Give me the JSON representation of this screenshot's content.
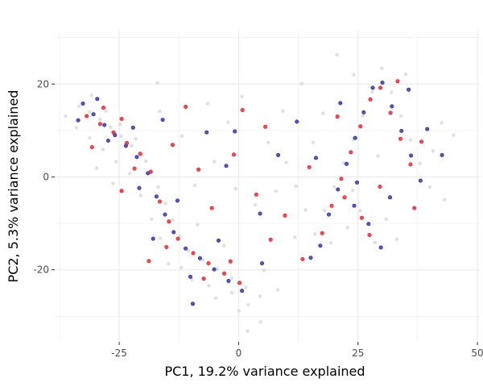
{
  "chart_data": {
    "type": "scatter",
    "xlabel": "PC1, 19.2% variance explained",
    "ylabel": "PC2, 5.3% variance explained",
    "xlim": [
      -38.5,
      50.5
    ],
    "ylim": [
      -35.5,
      31.5
    ],
    "x_ticks": [
      -25,
      0,
      25,
      50
    ],
    "x_tick_labels": [
      "-25",
      "0",
      "25",
      "50"
    ],
    "y_ticks": [
      -20,
      0,
      20
    ],
    "y_tick_labels": [
      "-20",
      "0",
      "20"
    ],
    "grid": true,
    "legend": "none",
    "colors": {
      "background_cells": "#c8c8c8",
      "group_blue": "#1f1f9e",
      "group_red": "#e8111f",
      "gridline": "#ebebeb"
    },
    "series": [
      {
        "color": "#c8c8c8",
        "points": [
          [
            -33.4,
            15.2
          ],
          [
            -31.2,
            14.0
          ],
          [
            -29.0,
            12.4
          ],
          [
            -26.8,
            10.7
          ],
          [
            -24.6,
            8.8
          ],
          [
            -22.4,
            6.7
          ],
          [
            -20.2,
            4.6
          ],
          [
            -18.3,
            1.3
          ],
          [
            -16.8,
            -2.2
          ],
          [
            -15.3,
            -5.7
          ],
          [
            -13.8,
            -9.3
          ],
          [
            -12.3,
            -12.8
          ],
          [
            -10.5,
            -15.9
          ],
          [
            -7.5,
            -17.9
          ],
          [
            -4.5,
            -19.8
          ],
          [
            -1.5,
            -21.8
          ],
          [
            1.5,
            -23.8
          ],
          [
            4.5,
            -25.7
          ],
          [
            -30.8,
            17.6
          ],
          [
            -27.8,
            14.2
          ],
          [
            -24.8,
            11.3
          ],
          [
            -21.5,
            8.2
          ],
          [
            -19.4,
            3.4
          ],
          [
            -20.5,
            -4.0
          ],
          [
            -16.4,
            -13.2
          ],
          [
            -12.0,
            -19.5
          ],
          [
            -6.2,
            -23.4
          ],
          [
            2.0,
            -27.5
          ],
          [
            -8.6,
            -10.3
          ],
          [
            -3.1,
            -14.8
          ],
          [
            -1.4,
            -24.9
          ],
          [
            5.3,
            -20.1
          ],
          [
            3.5,
            -6.0
          ],
          [
            -5.1,
            3.3
          ],
          [
            -11.9,
            8.8
          ],
          [
            -2.2,
            11.8
          ],
          [
            6.2,
            7.4
          ],
          [
            7.8,
            -3.1
          ],
          [
            -9.2,
            -1.8
          ],
          [
            -16.5,
            14.1
          ],
          [
            -0.6,
            -2.5
          ],
          [
            10.0,
            3.1
          ],
          [
            12.0,
            -2.0
          ],
          [
            14.0,
            -7.1
          ],
          [
            16.0,
            -12.3
          ],
          [
            18.0,
            -7.2
          ],
          [
            20.0,
            -2.1
          ],
          [
            22.0,
            3.0
          ],
          [
            24.0,
            8.1
          ],
          [
            26.0,
            13.2
          ],
          [
            28.0,
            18.3
          ],
          [
            30.0,
            23.4
          ],
          [
            32.0,
            18.2
          ],
          [
            34.0,
            13.1
          ],
          [
            36.0,
            8.0
          ],
          [
            38.0,
            2.9
          ],
          [
            40.0,
            -2.2
          ],
          [
            25.5,
            -7.3
          ],
          [
            22.8,
            -10.9
          ],
          [
            30.9,
            -9.1
          ],
          [
            17.7,
            13.7
          ],
          [
            24.1,
            22.0
          ],
          [
            35.0,
            22.1
          ],
          [
            40.7,
            5.6
          ],
          [
            28.5,
            -14.1
          ],
          [
            15.6,
            7.4
          ],
          [
            23.9,
            -2.9
          ],
          [
            29.2,
            4.5
          ],
          [
            42.5,
            11.6
          ],
          [
            19.3,
            -14.2
          ],
          [
            33.1,
            -13.4
          ],
          [
            11.8,
            -13.0
          ],
          [
            -36.2,
            13.1
          ],
          [
            -34.0,
            10.6
          ],
          [
            -31.2,
            8.4
          ],
          [
            -28.4,
            5.9
          ],
          [
            -25.6,
            3.3
          ],
          [
            -22.8,
            0.7
          ],
          [
            -26.3,
            -1.4
          ],
          [
            -29.7,
            1.9
          ],
          [
            -14.7,
            -18.7
          ],
          [
            -9.8,
            -22.1
          ],
          [
            -4.8,
            -26.1
          ],
          [
            0.1,
            -28.8
          ],
          [
            4.6,
            -31.2
          ],
          [
            -18.2,
            -9.1
          ],
          [
            8.2,
            -24.3
          ],
          [
            45.0,
            9.0
          ],
          [
            9.3,
            14.2
          ],
          [
            0.7,
            17.3
          ],
          [
            -6.5,
            15.8
          ],
          [
            13.2,
            20.1
          ],
          [
            20.6,
            26.3
          ],
          [
            -17.0,
            20.3
          ],
          [
            1.9,
            -33.2
          ],
          [
            43.1,
            -4.9
          ]
        ]
      },
      {
        "color": "#1f1f9e",
        "points": [
          [
            -32.6,
            15.8
          ],
          [
            -30.4,
            13.5
          ],
          [
            -28.1,
            11.2
          ],
          [
            -25.9,
            9.0
          ],
          [
            -23.6,
            6.7
          ],
          [
            -21.3,
            4.3
          ],
          [
            -19.0,
            0.8
          ],
          [
            -17.2,
            -4.2
          ],
          [
            -15.4,
            -8.1
          ],
          [
            -13.6,
            -11.9
          ],
          [
            -11.1,
            -15.4
          ],
          [
            -8.1,
            -17.5
          ],
          [
            -5.1,
            -19.9
          ],
          [
            -2.1,
            -22.4
          ],
          [
            0.7,
            -24.5
          ],
          [
            -33.6,
            12.2
          ],
          [
            -29.6,
            16.8
          ],
          [
            -27.3,
            7.8
          ],
          [
            -22.1,
            10.6
          ],
          [
            -20.8,
            -2.4
          ],
          [
            -17.9,
            -13.3
          ],
          [
            -10.1,
            -21.5
          ],
          [
            -4.2,
            -13.7
          ],
          [
            -12.8,
            -5.1
          ],
          [
            -2.6,
            2.4
          ],
          [
            4.5,
            -7.9
          ],
          [
            -6.7,
            9.6
          ],
          [
            8.3,
            4.7
          ],
          [
            -15.9,
            12.3
          ],
          [
            17.1,
            -14.8
          ],
          [
            18.9,
            -8.1
          ],
          [
            20.8,
            -2.7
          ],
          [
            22.6,
            2.8
          ],
          [
            24.4,
            8.4
          ],
          [
            26.2,
            13.9
          ],
          [
            28.1,
            19.2
          ],
          [
            30.1,
            20.3
          ],
          [
            32.1,
            15.2
          ],
          [
            34.1,
            9.9
          ],
          [
            36.1,
            4.6
          ],
          [
            38.1,
            -0.8
          ],
          [
            24.2,
            -6.2
          ],
          [
            27.2,
            -10.1
          ],
          [
            31.7,
            -4.4
          ],
          [
            16.2,
            4.1
          ],
          [
            21.3,
            15.9
          ],
          [
            35.6,
            18.8
          ],
          [
            15.1,
            -17.4
          ],
          [
            29.8,
            -15.2
          ],
          [
            39.5,
            10.3
          ],
          [
            42.6,
            4.7
          ],
          [
            24.8,
            -1.2
          ],
          [
            12.2,
            11.9
          ],
          [
            -0.8,
            9.8
          ],
          [
            -9.6,
            -27.3
          ],
          [
            4.9,
            -18.6
          ]
        ]
      },
      {
        "color": "#e8111f",
        "points": [
          [
            -31.8,
            13.1
          ],
          [
            -29.0,
            11.4
          ],
          [
            -26.2,
            9.6
          ],
          [
            -23.4,
            7.3
          ],
          [
            -20.6,
            5.0
          ],
          [
            -18.4,
            1.1
          ],
          [
            -16.5,
            -5.3
          ],
          [
            -14.6,
            -9.6
          ],
          [
            -12.7,
            -13.3
          ],
          [
            -9.5,
            -16.4
          ],
          [
            -6.3,
            -18.6
          ],
          [
            -3.0,
            -20.8
          ],
          [
            0.2,
            -22.8
          ],
          [
            -28.3,
            14.9
          ],
          [
            -24.5,
            12.5
          ],
          [
            -21.8,
            1.8
          ],
          [
            -15.1,
            -15.1
          ],
          [
            -7.3,
            -21.9
          ],
          [
            -1.7,
            -18.2
          ],
          [
            -5.6,
            -6.7
          ],
          [
            -1.0,
            4.8
          ],
          [
            3.7,
            -3.8
          ],
          [
            -8.4,
            1.6
          ],
          [
            -13.8,
            6.9
          ],
          [
            5.6,
            10.8
          ],
          [
            -11.1,
            15.1
          ],
          [
            17.5,
            -12.1
          ],
          [
            19.5,
            -6.2
          ],
          [
            21.5,
            -0.4
          ],
          [
            23.5,
            5.3
          ],
          [
            25.5,
            10.9
          ],
          [
            27.6,
            16.7
          ],
          [
            29.7,
            19.2
          ],
          [
            31.8,
            13.8
          ],
          [
            33.9,
            8.2
          ],
          [
            36.0,
            2.7
          ],
          [
            22.2,
            -4.4
          ],
          [
            25.8,
            -8.8
          ],
          [
            29.6,
            -2.1
          ],
          [
            14.8,
            2.1
          ],
          [
            20.7,
            13.0
          ],
          [
            33.3,
            20.6
          ],
          [
            38.3,
            7.6
          ],
          [
            27.4,
            -12.5
          ],
          [
            13.4,
            -17.7
          ],
          [
            36.8,
            -6.7
          ],
          [
            9.7,
            -8.3
          ],
          [
            0.8,
            14.4
          ],
          [
            -24.5,
            -3.0
          ],
          [
            -30.7,
            6.4
          ],
          [
            -18.8,
            -18.1
          ],
          [
            6.7,
            -13.5
          ]
        ]
      }
    ]
  }
}
